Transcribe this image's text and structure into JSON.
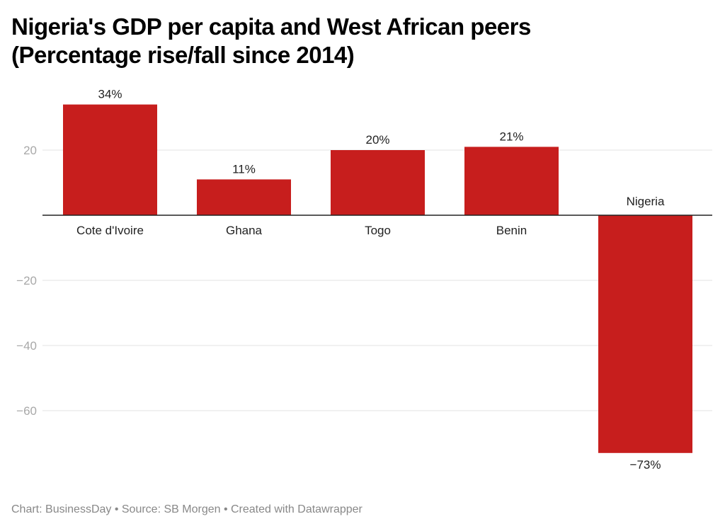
{
  "chart_data": {
    "type": "bar",
    "title": "Nigeria's GDP per capita and West African peers (Percentage rise/fall since 2014)",
    "xlabel": "",
    "ylabel": "",
    "categories": [
      "Cote d'Ivoire",
      "Ghana",
      "Togo",
      "Benin",
      "Nigeria"
    ],
    "values": [
      34,
      11,
      20,
      21,
      -73
    ],
    "value_labels": [
      "34%",
      "11%",
      "20%",
      "21%",
      "−73%"
    ],
    "ylim": [
      -75,
      36
    ],
    "yticks": [
      20,
      -20,
      -40,
      -60
    ],
    "ytick_labels": [
      "20",
      "−20",
      "−40",
      "−60"
    ],
    "grid": true,
    "bar_color": "#c71e1d",
    "legend": "none"
  },
  "header": {
    "title_line1": "Nigeria's GDP per capita and West African peers",
    "title_line2": "(Percentage rise/fall since 2014)"
  },
  "footer": {
    "text": "Chart: BusinessDay • Source: SB Morgen  • Created with Datawrapper"
  }
}
